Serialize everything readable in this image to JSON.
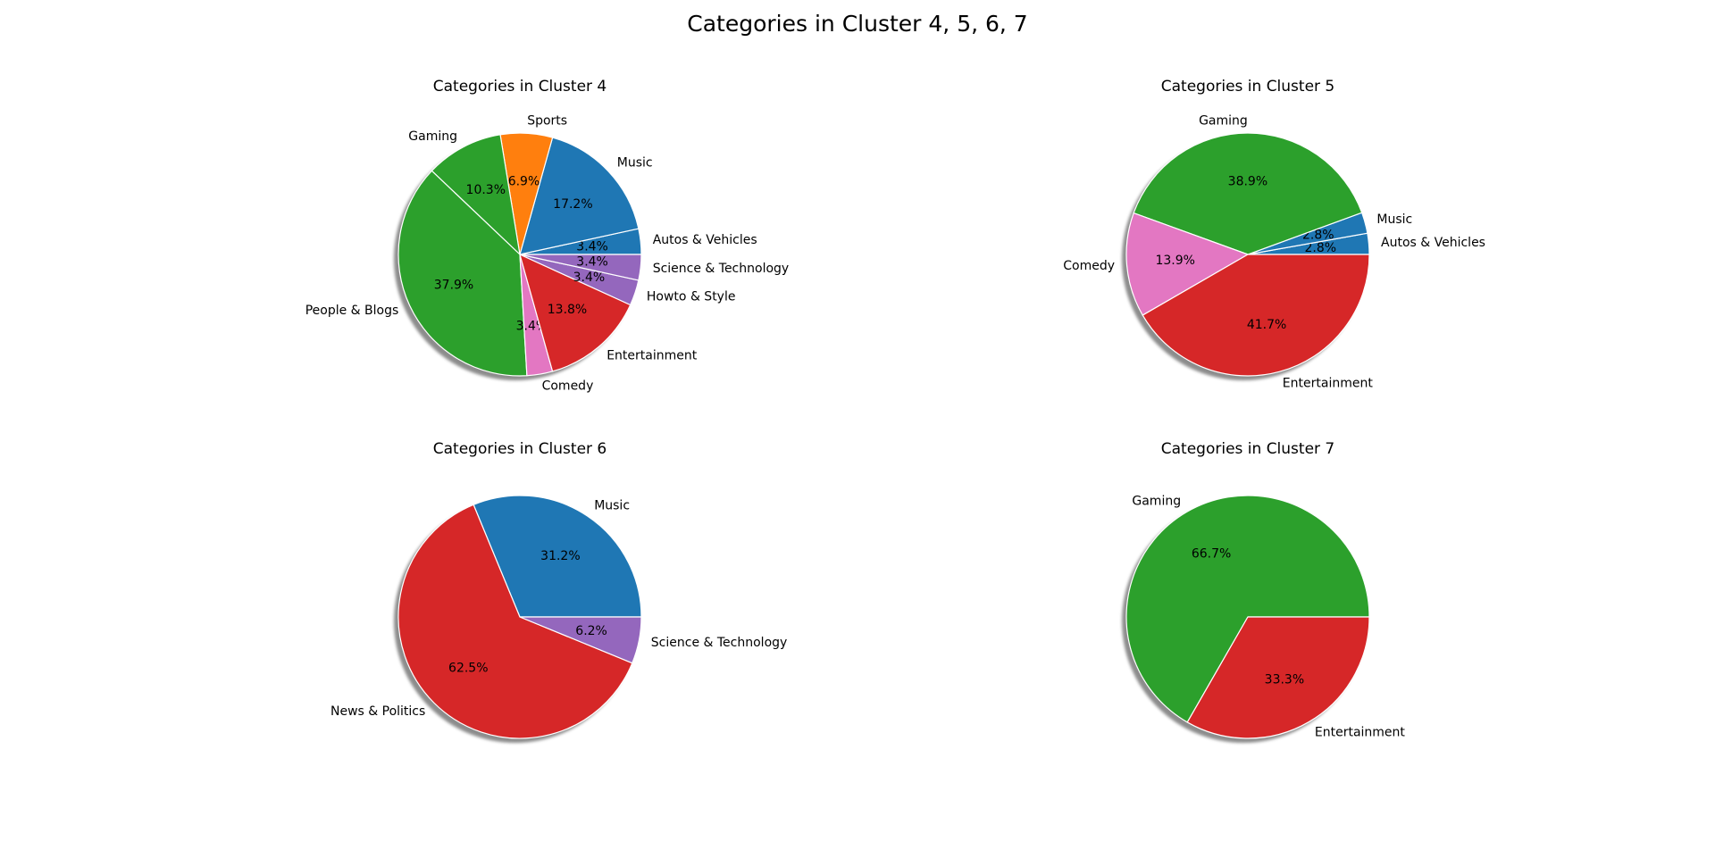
{
  "figure": {
    "title": "Categories in Cluster 4, 5, 6, 7"
  },
  "colors": {
    "blue": "#1f77b4",
    "orange": "#ff7f0e",
    "green": "#2ca02c",
    "red": "#d62728",
    "purple": "#9467bd",
    "pink": "#e377c2"
  },
  "chart_data": [
    {
      "type": "pie",
      "title": "Categories in Cluster 4",
      "start_angle": 0,
      "shadow": true,
      "slices": [
        {
          "label": "Autos & Vehicles",
          "value": 3.4,
          "pct_label": "3.4%",
          "color": "#1f77b4"
        },
        {
          "label": "Music",
          "value": 17.2,
          "pct_label": "17.2%",
          "color": "#1f77b4"
        },
        {
          "label": "Sports",
          "value": 6.9,
          "pct_label": "6.9%",
          "color": "#ff7f0e"
        },
        {
          "label": "Gaming",
          "value": 10.3,
          "pct_label": "10.3%",
          "color": "#2ca02c"
        },
        {
          "label": "People & Blogs",
          "value": 37.9,
          "pct_label": "37.9%",
          "color": "#2ca02c"
        },
        {
          "label": "Comedy",
          "value": 3.4,
          "pct_label": "3.4%",
          "color": "#e377c2"
        },
        {
          "label": "Entertainment",
          "value": 13.8,
          "pct_label": "13.8%",
          "color": "#d62728"
        },
        {
          "label": "Howto & Style",
          "value": 3.4,
          "pct_label": "3.4%",
          "color": "#9467bd"
        },
        {
          "label": "Science & Technology",
          "value": 3.4,
          "pct_label": "3.4%",
          "color": "#9467bd"
        }
      ]
    },
    {
      "type": "pie",
      "title": "Categories in Cluster 5",
      "start_angle": 0,
      "shadow": true,
      "slices": [
        {
          "label": "Autos & Vehicles",
          "value": 2.8,
          "pct_label": "2.8%",
          "color": "#1f77b4"
        },
        {
          "label": "Music",
          "value": 2.8,
          "pct_label": "2.8%",
          "color": "#1f77b4"
        },
        {
          "label": "Gaming",
          "value": 38.9,
          "pct_label": "38.9%",
          "color": "#2ca02c"
        },
        {
          "label": "Comedy",
          "value": 13.9,
          "pct_label": "13.9%",
          "color": "#e377c2"
        },
        {
          "label": "Entertainment",
          "value": 41.7,
          "pct_label": "41.7%",
          "color": "#d62728"
        }
      ]
    },
    {
      "type": "pie",
      "title": "Categories in Cluster 6",
      "start_angle": 0,
      "shadow": true,
      "slices": [
        {
          "label": "Music",
          "value": 31.2,
          "pct_label": "31.2%",
          "color": "#1f77b4"
        },
        {
          "label": "News & Politics",
          "value": 62.5,
          "pct_label": "62.5%",
          "color": "#d62728"
        },
        {
          "label": "Science & Technology",
          "value": 6.2,
          "pct_label": "6.2%",
          "color": "#9467bd"
        }
      ]
    },
    {
      "type": "pie",
      "title": "Categories in Cluster 7",
      "start_angle": 0,
      "shadow": true,
      "slices": [
        {
          "label": "Gaming",
          "value": 66.7,
          "pct_label": "66.7%",
          "color": "#2ca02c"
        },
        {
          "label": "Entertainment",
          "value": 33.3,
          "pct_label": "33.3%",
          "color": "#d62728"
        }
      ]
    }
  ]
}
